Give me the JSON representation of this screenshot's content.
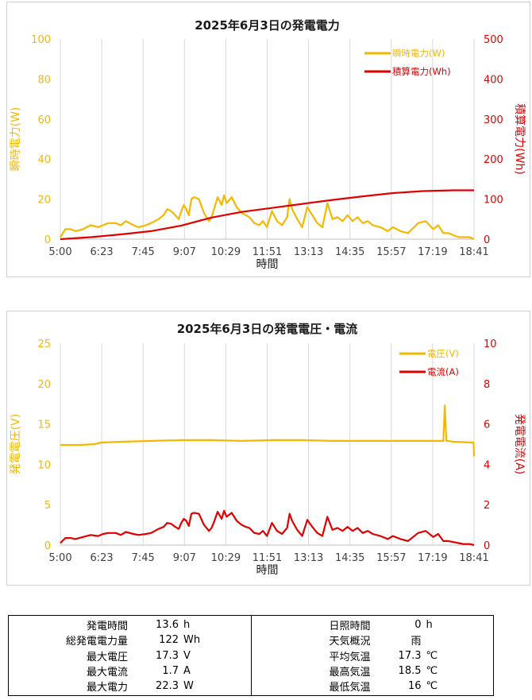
{
  "colors": {
    "instant": "#f5b800",
    "cumulative": "#e00000",
    "voltage": "#f5b800",
    "current": "#e00000",
    "grid": "#d9d9d9"
  },
  "chart_data": [
    {
      "type": "line",
      "title": "2025年6月3日の発電電力",
      "xlabel": "時間",
      "ylabel_left": "瞬時電力(W)",
      "ylabel_right": "積算電力(Wh)",
      "x_ticks": [
        "5:00",
        "6:23",
        "7:45",
        "9:07",
        "10:29",
        "11:51",
        "13:13",
        "14:35",
        "15:57",
        "17:19",
        "18:41"
      ],
      "xlim_minutes": [
        300,
        1121
      ],
      "ylim_left": [
        0,
        100
      ],
      "yticks_left": [
        "0",
        "20",
        "40",
        "60",
        "80",
        "100"
      ],
      "ylim_right": [
        0,
        500
      ],
      "yticks_right": [
        "0",
        "100",
        "200",
        "300",
        "400",
        "500"
      ],
      "legend_position": "top-right",
      "grid": "vertical",
      "series": [
        {
          "name": "瞬時電力(W)",
          "axis": "left",
          "x": [
            300,
            310,
            320,
            330,
            345,
            360,
            375,
            385,
            395,
            410,
            420,
            430,
            445,
            455,
            470,
            480,
            495,
            505,
            512,
            520,
            528,
            535,
            540,
            545,
            550,
            555,
            560,
            565,
            575,
            585,
            595,
            600,
            605,
            612,
            620,
            625,
            630,
            640,
            650,
            660,
            668,
            675,
            685,
            695,
            702,
            710,
            720,
            730,
            740,
            750,
            755,
            760,
            770,
            780,
            790,
            800,
            810,
            820,
            830,
            840,
            850,
            860,
            870,
            880,
            890,
            900,
            910,
            920,
            935,
            950,
            960,
            975,
            990,
            1010,
            1025,
            1040,
            1050,
            1060,
            1070,
            1080,
            1090,
            1100,
            1112,
            1121
          ],
          "y": [
            1,
            5,
            5,
            4,
            5,
            7,
            6,
            7,
            8,
            8,
            7,
            9,
            7,
            6,
            7,
            8,
            10,
            12,
            15,
            14,
            12,
            10,
            14,
            17,
            15,
            12,
            20,
            21,
            20,
            13,
            9,
            11,
            15,
            21,
            17,
            22,
            18,
            21,
            16,
            13,
            12,
            11,
            8,
            7,
            9,
            6,
            14,
            9,
            7,
            11,
            20,
            15,
            10,
            6,
            16,
            12,
            8,
            6,
            18,
            10,
            11,
            9,
            12,
            9,
            11,
            8,
            9,
            7,
            6,
            4,
            6,
            4,
            3,
            8,
            9,
            5,
            7,
            3,
            3,
            2,
            1,
            1,
            1,
            0
          ]
        },
        {
          "name": "積算電力(Wh)",
          "axis": "right",
          "x": [
            300,
            360,
            420,
            480,
            540,
            600,
            660,
            720,
            780,
            840,
            900,
            960,
            1020,
            1080,
            1121
          ],
          "y": [
            0,
            5,
            12,
            20,
            34,
            54,
            68,
            78,
            88,
            98,
            107,
            115,
            120,
            122,
            122
          ]
        }
      ]
    },
    {
      "type": "line",
      "title": "2025年6月3日の発電電圧・電流",
      "xlabel": "時間",
      "ylabel_left": "発電電圧(V)",
      "ylabel_right": "発電電流(A)",
      "x_ticks": [
        "5:00",
        "6:23",
        "7:45",
        "9:07",
        "10:29",
        "11:51",
        "13:13",
        "14:35",
        "15:57",
        "17:19",
        "18:41"
      ],
      "xlim_minutes": [
        300,
        1121
      ],
      "ylim_left": [
        0,
        25
      ],
      "yticks_left": [
        "0",
        "5",
        "10",
        "15",
        "20",
        "25"
      ],
      "ylim_right": [
        0,
        10
      ],
      "yticks_right": [
        "0",
        "2",
        "4",
        "6",
        "8",
        "10"
      ],
      "legend_position": "top-right",
      "grid": "vertical",
      "series": [
        {
          "name": "電圧(V)",
          "axis": "left",
          "x": [
            300,
            320,
            340,
            368,
            380,
            420,
            480,
            540,
            600,
            660,
            720,
            780,
            840,
            900,
            960,
            1060,
            1063,
            1066,
            1070,
            1080,
            1120,
            1121
          ],
          "y": [
            12.4,
            12.4,
            12.4,
            12.5,
            12.7,
            12.8,
            12.9,
            13.0,
            13.0,
            12.9,
            13.0,
            13.0,
            12.9,
            12.9,
            12.9,
            12.9,
            17.3,
            12.9,
            12.9,
            12.8,
            12.7,
            11.0
          ]
        },
        {
          "name": "電流(A)",
          "axis": "right",
          "x": [
            300,
            310,
            320,
            330,
            345,
            360,
            375,
            385,
            395,
            410,
            420,
            430,
            445,
            455,
            470,
            480,
            495,
            505,
            512,
            520,
            528,
            535,
            540,
            545,
            550,
            555,
            560,
            565,
            575,
            585,
            595,
            600,
            605,
            612,
            620,
            625,
            630,
            640,
            650,
            660,
            668,
            675,
            685,
            695,
            702,
            710,
            720,
            730,
            740,
            750,
            755,
            760,
            770,
            780,
            790,
            800,
            810,
            820,
            830,
            840,
            850,
            860,
            870,
            880,
            890,
            900,
            910,
            920,
            935,
            950,
            960,
            975,
            990,
            1010,
            1025,
            1040,
            1050,
            1060,
            1070,
            1080,
            1090,
            1100,
            1112,
            1121
          ],
          "y": [
            0.1,
            0.35,
            0.35,
            0.3,
            0.4,
            0.5,
            0.45,
            0.55,
            0.6,
            0.6,
            0.5,
            0.65,
            0.55,
            0.5,
            0.55,
            0.6,
            0.8,
            0.9,
            1.1,
            1.05,
            0.9,
            0.8,
            1.1,
            1.3,
            1.2,
            0.95,
            1.55,
            1.6,
            1.55,
            1.0,
            0.7,
            0.85,
            1.15,
            1.65,
            1.3,
            1.7,
            1.4,
            1.6,
            1.2,
            1.0,
            0.9,
            0.85,
            0.6,
            0.55,
            0.7,
            0.45,
            1.1,
            0.7,
            0.55,
            0.85,
            1.55,
            1.2,
            0.75,
            0.45,
            1.25,
            0.9,
            0.6,
            0.45,
            1.4,
            0.75,
            0.85,
            0.7,
            0.9,
            0.7,
            0.85,
            0.6,
            0.7,
            0.55,
            0.45,
            0.3,
            0.45,
            0.3,
            0.2,
            0.6,
            0.7,
            0.4,
            0.55,
            0.2,
            0.2,
            0.15,
            0.1,
            0.05,
            0.05,
            0.0
          ]
        }
      ]
    }
  ],
  "summary": {
    "left": [
      {
        "label": "発電時間",
        "value": "13.6",
        "unit": "h"
      },
      {
        "label": "総発電電力量",
        "value": "122",
        "unit": "Wh"
      },
      {
        "label": "最大電圧",
        "value": "17.3",
        "unit": "V"
      },
      {
        "label": "最大電流",
        "value": "1.7",
        "unit": "A"
      },
      {
        "label": "最大電力",
        "value": "22.3",
        "unit": "W"
      }
    ],
    "right": [
      {
        "label": "日照時間",
        "value": "0",
        "unit": "h"
      },
      {
        "label": "天気概況",
        "value": "雨",
        "unit": ""
      },
      {
        "label": "平均気温",
        "value": "17.3",
        "unit": "℃"
      },
      {
        "label": "最高気温",
        "value": "18.5",
        "unit": "℃"
      },
      {
        "label": "最低気温",
        "value": "16",
        "unit": "℃"
      }
    ]
  }
}
